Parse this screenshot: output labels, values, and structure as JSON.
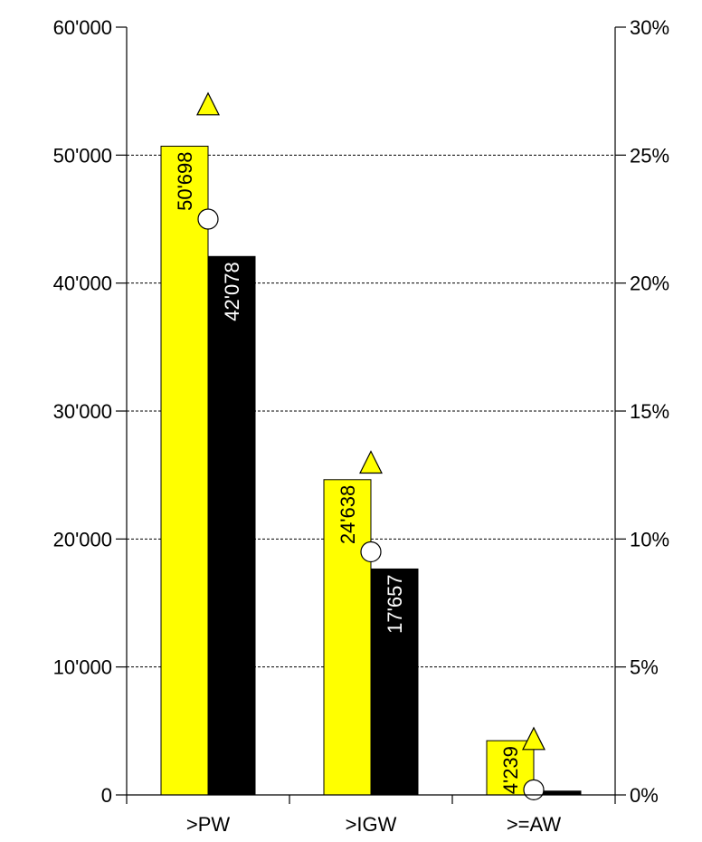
{
  "chart_data": {
    "type": "bar",
    "categories": [
      ">PW",
      ">IGW",
      ">=AW"
    ],
    "series": [
      {
        "values": [
          50698,
          24638,
          4239
        ],
        "labels": [
          "50'698",
          "24'638",
          "4'239"
        ],
        "color": "#ffff00",
        "label_color": "#000000"
      },
      {
        "values": [
          42078,
          17657,
          300
        ],
        "labels": [
          "42'078",
          "17'657",
          ""
        ],
        "color": "#000000",
        "label_color": "#ffffff"
      }
    ],
    "markers": [
      {
        "shape": "triangle",
        "axis": "right",
        "values": [
          27.0,
          13.0,
          2.2
        ],
        "color": "#ffff00"
      },
      {
        "shape": "circle",
        "axis": "right",
        "values": [
          22.5,
          9.5,
          0.2
        ],
        "color": "#ffffff"
      }
    ],
    "left_axis": {
      "min": 0,
      "max": 60000,
      "ticks": [
        "0",
        "10'000",
        "20'000",
        "30'000",
        "40'000",
        "50'000",
        "60'000"
      ]
    },
    "right_axis": {
      "min": 0,
      "max": 30,
      "ticks": [
        "0%",
        "5%",
        "10%",
        "15%",
        "20%",
        "25%",
        "30%"
      ]
    },
    "gridlines": "dashed",
    "title": "",
    "xlabel": "",
    "ylabel": ""
  }
}
